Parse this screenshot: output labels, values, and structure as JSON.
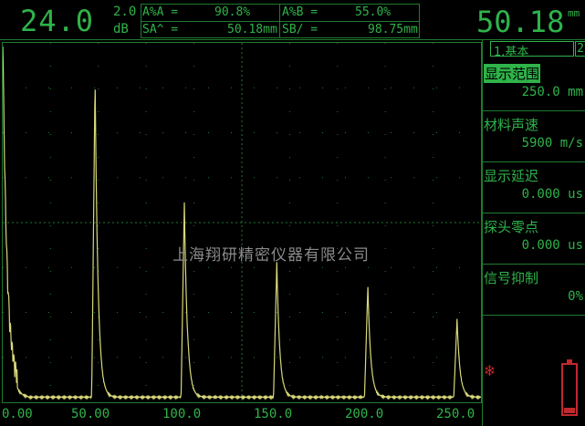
{
  "header": {
    "gain_value": "24.0",
    "gain_step": "2.0",
    "gain_unit": "dB",
    "measurements": [
      {
        "label": "A%A =",
        "value": "90.8%"
      },
      {
        "label": "A%B =",
        "value": "55.0%"
      },
      {
        "label": "SA^ =",
        "value": "50.18mm"
      },
      {
        "label": "SB/ =",
        "value": "98.75mm"
      }
    ],
    "main_reading": "50.18",
    "main_reading_unit": "mm"
  },
  "plot": {
    "watermark": "上海翔研精密仪器有限公司",
    "x_ticks": [
      "0.00",
      "50.00",
      "100.0",
      "150.0",
      "200.0",
      "250.0"
    ],
    "x_range": [
      0,
      260
    ],
    "y_range": [
      0,
      100
    ],
    "echo_peaks": [
      {
        "x": 50.18,
        "height": 90.8
      },
      {
        "x": 98.75,
        "height": 55.0
      },
      {
        "x": 149.0,
        "height": 38.0
      },
      {
        "x": 198.5,
        "height": 31.0
      },
      {
        "x": 247.0,
        "height": 22.0
      }
    ],
    "colors": {
      "trace": "#d8d87a",
      "grid": "#1f7a2f",
      "text": "#2fb34a"
    }
  },
  "menu": {
    "tab_active": "1.基本",
    "tab_next": "2",
    "items": [
      {
        "label": "显示范围",
        "value": "250.0 mm",
        "selected": true
      },
      {
        "label": "材料声速",
        "value": "5900 m/s",
        "selected": false
      },
      {
        "label": "显示延迟",
        "value": "0.000 us",
        "selected": false
      },
      {
        "label": "探头零点",
        "value": "0.000 us",
        "selected": false
      },
      {
        "label": "信号抑制",
        "value": "0%",
        "selected": false
      }
    ]
  },
  "status": {
    "freeze_icon": "snowflake-icon",
    "battery_level": 0.12,
    "accent_color": "#c0282e"
  }
}
